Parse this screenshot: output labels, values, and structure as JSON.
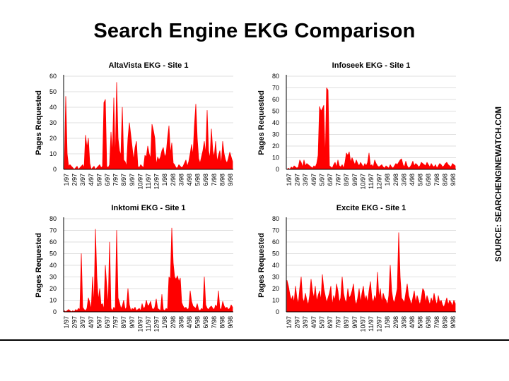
{
  "page": {
    "title": "Search Engine EKG Comparison",
    "source": "SOURCE: SEARCHENGINEWATCH.COM"
  },
  "colors": {
    "series": "#ff0000",
    "axis": "#000000",
    "grid": "#c0c0c0"
  },
  "chart_data": [
    {
      "type": "area",
      "title": "AltaVista EKG - Site 1",
      "ylabel": "Pages Requested",
      "xlabel": "",
      "ylim": [
        0,
        60
      ],
      "yticks": [
        0,
        10,
        20,
        30,
        40,
        50,
        60
      ],
      "grid": true,
      "legend": "none",
      "x_ticks": [
        "1/97",
        "2/97",
        "3/97",
        "4/97",
        "5/97",
        "6/97",
        "7/97",
        "8/97",
        "9/97",
        "10/97",
        "11/97",
        "12/97",
        "1/98",
        "2/98",
        "3/98",
        "4/98",
        "5/98",
        "6/98",
        "7/98",
        "8/98",
        "9/98"
      ],
      "series": [
        {
          "values": [
            2,
            47,
            10,
            2,
            3,
            2,
            1,
            0,
            1,
            2,
            0,
            1,
            2,
            3,
            1,
            22,
            14,
            20,
            4,
            0,
            1,
            2,
            0,
            1,
            2,
            3,
            1,
            2,
            43,
            45,
            2,
            1,
            3,
            24,
            10,
            46,
            5,
            56,
            20,
            12,
            9,
            40,
            6,
            5,
            2,
            20,
            30,
            22,
            14,
            6,
            14,
            18,
            2,
            1,
            3,
            2,
            1,
            9,
            8,
            15,
            10,
            7,
            29,
            25,
            20,
            3,
            8,
            6,
            8,
            12,
            14,
            8,
            10,
            20,
            28,
            10,
            17,
            4,
            3,
            1,
            1,
            3,
            2,
            1,
            2,
            4,
            6,
            2,
            5,
            10,
            16,
            9,
            28,
            42,
            20,
            7,
            4,
            8,
            12,
            18,
            10,
            38,
            12,
            7,
            26,
            12,
            8,
            18,
            5,
            9,
            12,
            3,
            18,
            10,
            6,
            4,
            7,
            11,
            8,
            5
          ]
        }
      ]
    },
    {
      "type": "area",
      "title": "Infoseek EKG - Site 1",
      "ylabel": "Pages Requested",
      "xlabel": "",
      "ylim": [
        0,
        80
      ],
      "yticks": [
        0,
        10,
        20,
        30,
        40,
        50,
        60,
        70,
        80
      ],
      "grid": true,
      "legend": "none",
      "x_ticks": [
        "1/97",
        "2/97",
        "3/97",
        "4/97",
        "5/97",
        "6/97",
        "7/97",
        "8/97",
        "9/97",
        "10/97",
        "11/97",
        "12/97",
        "1/98",
        "2/98",
        "3/98",
        "4/98",
        "5/98",
        "6/98",
        "7/98",
        "8/98",
        "9/98"
      ],
      "series": [
        {
          "values": [
            0,
            1,
            0,
            2,
            1,
            3,
            2,
            1,
            2,
            8,
            6,
            2,
            8,
            3,
            5,
            4,
            3,
            2,
            1,
            3,
            2,
            5,
            12,
            54,
            50,
            52,
            55,
            8,
            70,
            68,
            3,
            2,
            1,
            4,
            6,
            2,
            8,
            3,
            2,
            4,
            1,
            6,
            14,
            12,
            15,
            6,
            10,
            7,
            4,
            8,
            5,
            3,
            6,
            4,
            2,
            5,
            3,
            6,
            14,
            3,
            4,
            2,
            8,
            5,
            3,
            2,
            3,
            4,
            2,
            1,
            3,
            2,
            1,
            4,
            2,
            1,
            3,
            5,
            4,
            6,
            8,
            9,
            4,
            2,
            7,
            3,
            1,
            2,
            4,
            7,
            3,
            5,
            4,
            2,
            3,
            6,
            5,
            4,
            3,
            6,
            4,
            2,
            5,
            3,
            2,
            4,
            1,
            3,
            5,
            4,
            2,
            3,
            5,
            6,
            4,
            3,
            2,
            5,
            4,
            3
          ]
        }
      ]
    },
    {
      "type": "area",
      "title": "Inktomi EKG - Site 1",
      "ylabel": "Pages Requested",
      "xlabel": "",
      "ylim": [
        0,
        80
      ],
      "yticks": [
        0,
        10,
        20,
        30,
        40,
        50,
        60,
        70,
        80
      ],
      "grid": true,
      "legend": "none",
      "x_ticks": [
        "1/97",
        "2/97",
        "3/97",
        "4/97",
        "5/97",
        "6/97",
        "7/97",
        "8/97",
        "9/97",
        "10/97",
        "11/97",
        "12/97",
        "1/98",
        "2/98",
        "3/98",
        "4/98",
        "5/98",
        "6/98",
        "7/98",
        "8/98",
        "9/98"
      ],
      "series": [
        {
          "values": [
            1,
            0,
            1,
            2,
            1,
            0,
            1,
            0,
            2,
            1,
            3,
            2,
            50,
            4,
            2,
            1,
            3,
            12,
            8,
            2,
            30,
            5,
            71,
            30,
            10,
            20,
            6,
            7,
            2,
            40,
            22,
            5,
            60,
            3,
            1,
            4,
            2,
            70,
            12,
            8,
            3,
            5,
            10,
            2,
            4,
            20,
            6,
            1,
            3,
            2,
            4,
            1,
            2,
            3,
            1,
            7,
            3,
            4,
            10,
            5,
            6,
            9,
            3,
            2,
            4,
            11,
            3,
            2,
            1,
            15,
            2,
            1,
            3,
            2,
            30,
            28,
            72,
            42,
            30,
            28,
            31,
            26,
            29,
            8,
            5,
            3,
            4,
            2,
            3,
            18,
            9,
            5,
            4,
            3,
            7,
            2,
            1,
            3,
            2,
            30,
            6,
            3,
            2,
            4,
            5,
            3,
            2,
            6,
            4,
            18,
            3,
            2,
            9,
            5,
            3,
            4,
            2,
            3,
            6,
            4
          ]
        }
      ]
    },
    {
      "type": "area",
      "title": "Excite EKG - Site 1",
      "ylabel": "Pages Requested",
      "xlabel": "",
      "ylim": [
        0,
        80
      ],
      "yticks": [
        0,
        10,
        20,
        30,
        40,
        50,
        60,
        70,
        80
      ],
      "grid": true,
      "legend": "none",
      "x_ticks": [
        "1/97",
        "2/97",
        "3/97",
        "4/97",
        "5/97",
        "6/97",
        "7/97",
        "8/97",
        "9/97",
        "10/97",
        "11/97",
        "12/97",
        "1/98",
        "2/98",
        "3/98",
        "4/98",
        "5/98",
        "6/98",
        "7/98",
        "8/98",
        "9/98"
      ],
      "series": [
        {
          "values": [
            27,
            22,
            15,
            10,
            14,
            8,
            22,
            12,
            7,
            20,
            30,
            12,
            8,
            16,
            10,
            6,
            14,
            28,
            18,
            12,
            22,
            9,
            14,
            18,
            10,
            32,
            20,
            14,
            8,
            12,
            16,
            22,
            6,
            14,
            10,
            24,
            18,
            8,
            12,
            30,
            16,
            10,
            8,
            20,
            12,
            14,
            18,
            24,
            10,
            6,
            12,
            20,
            8,
            16,
            22,
            10,
            14,
            8,
            18,
            26,
            12,
            8,
            14,
            10,
            34,
            12,
            20,
            8,
            16,
            12,
            10,
            6,
            14,
            40,
            18,
            10,
            8,
            14,
            20,
            68,
            30,
            12,
            10,
            8,
            16,
            24,
            14,
            10,
            6,
            12,
            18,
            8,
            14,
            10,
            6,
            12,
            20,
            18,
            8,
            14,
            10,
            6,
            12,
            8,
            16,
            10,
            6,
            14,
            8,
            10,
            6,
            4,
            8,
            12,
            6,
            10,
            8,
            5,
            10,
            7
          ]
        }
      ]
    }
  ]
}
